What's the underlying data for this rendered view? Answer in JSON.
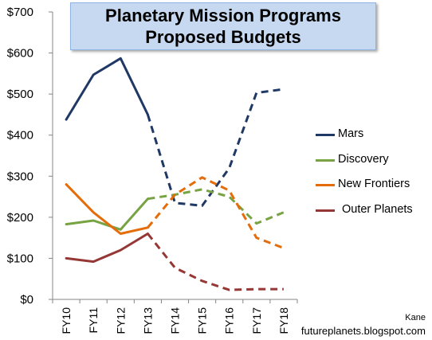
{
  "title": "Planetary Mission Programs Proposed Budgets",
  "credit": {
    "author": "Kane",
    "site": "futureplanets.blogspot.com"
  },
  "chart_data": {
    "type": "line",
    "title": "Planetary Mission Programs Proposed Budgets",
    "categories": [
      "FY10",
      "FY11",
      "FY12",
      "FY13",
      "FY14",
      "FY15",
      "FY16",
      "FY17",
      "FY18"
    ],
    "y_ticks": [
      "$0",
      "$100",
      "$200",
      "$300",
      "$400",
      "$500",
      "$600",
      "$700"
    ],
    "ylim": [
      0,
      700
    ],
    "solid_through_index": 3,
    "grid": false,
    "legend_position": "right",
    "series": [
      {
        "name": "Mars",
        "color": "#1f3864",
        "values": [
          438,
          547,
          587,
          450,
          235,
          228,
          320,
          503,
          512
        ]
      },
      {
        "name": "Discovery",
        "color": "#77a342",
        "values": [
          183,
          192,
          170,
          245,
          255,
          268,
          250,
          185,
          212
        ]
      },
      {
        "name": "New Frontiers",
        "color": "#e46c0a",
        "values": [
          280,
          212,
          160,
          175,
          255,
          297,
          265,
          150,
          125
        ]
      },
      {
        "name": "Outer Planets",
        "color": "#953735",
        "values": [
          100,
          92,
          120,
          160,
          77,
          45,
          23,
          25,
          25
        ]
      }
    ]
  }
}
